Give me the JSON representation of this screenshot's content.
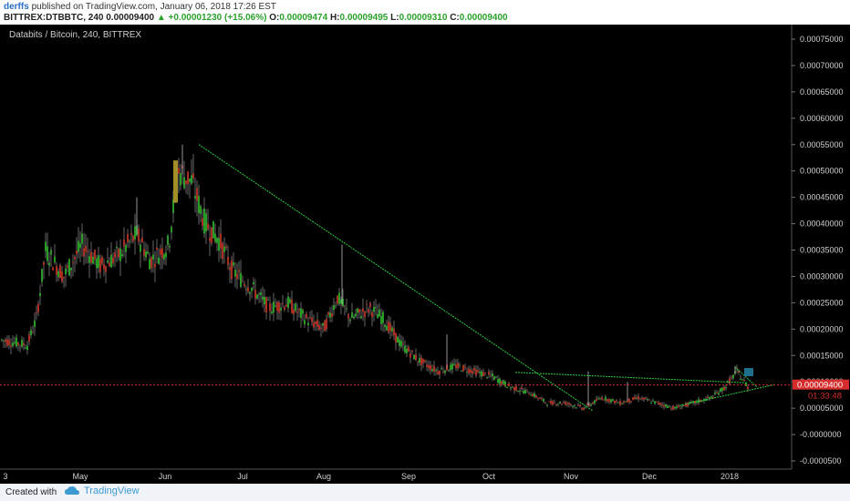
{
  "header": {
    "author": "derffs",
    "published": "published on TradingView.com, January 06, 2018 17:26 EST",
    "symbol": "BITTREX:DTBBTC, 240",
    "last": "0.00009400",
    "change": "+0.00001230 (+15.06%)",
    "open_label": "O:",
    "open": "0.00009474",
    "high_label": "H:",
    "high": "0.00009495",
    "low_label": "L:",
    "low": "0.00009310",
    "close_label": "C:",
    "close": "0.00009400"
  },
  "footer": {
    "created_with": "Created with",
    "brand": "TradingView"
  },
  "chart_data": {
    "type": "candlestick",
    "title": "Databits / Bitcoin, 240, BITTREX",
    "ylim": [
      -6e-05,
      0.00077
    ],
    "y_ticks": [
      "0.00075000",
      "0.00070000",
      "0.00065000",
      "0.00060000",
      "0.00055000",
      "0.00050000",
      "0.00045000",
      "0.00040000",
      "0.00035000",
      "0.00030000",
      "0.00025000",
      "0.00020000",
      "0.00015000",
      "0.00010000",
      "0.00005000",
      "-0.0000000",
      "-0.0000500"
    ],
    "x_ticks": [
      "3",
      "May",
      "Jun",
      "Jul",
      "Aug",
      "Sep",
      "Oct",
      "Nov",
      "Dec",
      "2018"
    ],
    "last_price_label": "0.00009400",
    "countdown_label": "01:33:48",
    "last_price": 9.4e-05,
    "price_path": [
      [
        0,
        0.00018
      ],
      [
        30,
        0.00017
      ],
      [
        40,
        0.00022
      ],
      [
        50,
        0.00035
      ],
      [
        70,
        0.0003
      ],
      [
        90,
        0.00036
      ],
      [
        110,
        0.00032
      ],
      [
        130,
        0.00034
      ],
      [
        150,
        0.00038
      ],
      [
        165,
        0.00033
      ],
      [
        185,
        0.00036
      ],
      [
        195,
        0.0005
      ],
      [
        210,
        0.00048
      ],
      [
        225,
        0.0004
      ],
      [
        240,
        0.00037
      ],
      [
        255,
        0.00031
      ],
      [
        275,
        0.00028
      ],
      [
        295,
        0.00024
      ],
      [
        315,
        0.00025
      ],
      [
        335,
        0.00022
      ],
      [
        355,
        0.0002
      ],
      [
        370,
        0.00026
      ],
      [
        385,
        0.00022
      ],
      [
        405,
        0.00024
      ],
      [
        420,
        0.00022
      ],
      [
        440,
        0.00017
      ],
      [
        460,
        0.00014
      ],
      [
        480,
        0.00012
      ],
      [
        500,
        0.00013
      ],
      [
        520,
        0.00012
      ],
      [
        540,
        0.00011
      ],
      [
        560,
        9e-05
      ],
      [
        580,
        8e-05
      ],
      [
        600,
        6e-05
      ],
      [
        620,
        6e-05
      ],
      [
        640,
        5e-05
      ],
      [
        660,
        7e-05
      ],
      [
        680,
        6e-05
      ],
      [
        700,
        7e-05
      ],
      [
        720,
        6e-05
      ],
      [
        740,
        5e-05
      ],
      [
        760,
        6e-05
      ],
      [
        780,
        7e-05
      ],
      [
        795,
        9e-05
      ],
      [
        808,
        0.00012
      ],
      [
        820,
        9e-05
      ]
    ],
    "spikes": [
      [
        150,
        0.00045
      ],
      [
        200,
        0.00055
      ],
      [
        375,
        0.00036
      ],
      [
        490,
        0.00019
      ],
      [
        645,
        0.00012
      ],
      [
        688,
        0.0001
      ],
      [
        806,
        0.00013
      ]
    ],
    "trendlines": [
      {
        "color": "#2ecc40",
        "from": [
          218,
          0.00055
        ],
        "to": [
          650,
          4.5e-05
        ]
      },
      {
        "color": "#2ecc40",
        "from": [
          565,
          0.000118
        ],
        "to": [
          820,
          9.8e-05
        ]
      },
      {
        "color": "#2ecc40",
        "from": [
          745,
          5.5e-05
        ],
        "to": [
          850,
          9.5e-05
        ]
      },
      {
        "color": "#2ecc40",
        "from": [
          806,
          0.000128
        ],
        "to": [
          830,
          9e-05
        ]
      }
    ]
  }
}
